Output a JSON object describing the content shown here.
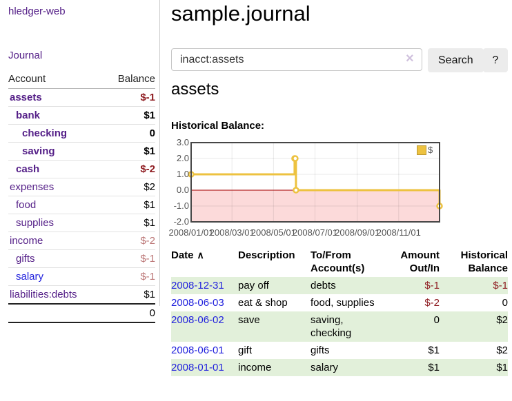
{
  "app": {
    "brand": "hledger-web"
  },
  "sidebar": {
    "nav_journal": "Journal",
    "table": {
      "headers": {
        "account": "Account",
        "balance": "Balance"
      },
      "rows": [
        {
          "account": "assets",
          "balance": "$-1",
          "indent": 1,
          "account_bold": true,
          "balance_style": "neg-strong"
        },
        {
          "account": "bank",
          "balance": "$1",
          "indent": 2,
          "account_bold": true,
          "balance_style": "bold"
        },
        {
          "account": "checking",
          "balance": "0",
          "indent": 3,
          "account_bold": true,
          "balance_style": "bold"
        },
        {
          "account": "saving",
          "balance": "$1",
          "indent": 3,
          "account_bold": true,
          "balance_style": "bold"
        },
        {
          "account": "cash",
          "balance": "$-2",
          "indent": 2,
          "account_bold": true,
          "balance_style": "neg-strong"
        },
        {
          "account": "expenses",
          "balance": "$2",
          "indent": 1,
          "account_bold": false,
          "balance_style": "plain"
        },
        {
          "account": "food",
          "balance": "$1",
          "indent": 2,
          "account_bold": false,
          "balance_style": "plain"
        },
        {
          "account": "supplies",
          "balance": "$1",
          "indent": 2,
          "account_bold": false,
          "balance_style": "plain"
        },
        {
          "account": "income",
          "balance": "$-2",
          "indent": 1,
          "account_bold": false,
          "balance_style": "neg-muted"
        },
        {
          "account": "gifts",
          "balance": "$-1",
          "indent": 2,
          "account_bold": false,
          "balance_style": "neg-muted"
        },
        {
          "account": "salary",
          "balance": "$-1",
          "indent": 2,
          "account_bold": false,
          "balance_style": "neg-muted",
          "link_color": "blue"
        },
        {
          "account": "liabilities:debts",
          "balance": "$1",
          "indent": 1,
          "account_bold": false,
          "balance_style": "plain"
        }
      ],
      "total": "0"
    }
  },
  "main": {
    "title": "sample.journal",
    "search": {
      "value": "inacct:assets",
      "clear_icon": "×",
      "button_label": "Search",
      "help_label": "?"
    },
    "account_heading": "assets",
    "chart_label": "Historical Balance:"
  },
  "chart_data": {
    "type": "line",
    "title": "Historical Balance",
    "steps": true,
    "series": [
      {
        "name": "$",
        "color": "#edc240",
        "points": [
          [
            "2008-01-01",
            1
          ],
          [
            "2008-06-01",
            2
          ],
          [
            "2008-06-02",
            2
          ],
          [
            "2008-06-03",
            0
          ],
          [
            "2008-12-31",
            -1
          ]
        ]
      }
    ],
    "x_range": [
      "2008-01-01",
      "2008-12-31"
    ],
    "ylim": [
      -2,
      3
    ],
    "y_tick_labels": [
      "3.0",
      "2.0",
      "1.0",
      "0.0",
      "-1.0",
      "-2.0"
    ],
    "y_tick_values": [
      3,
      2,
      1,
      0,
      -1,
      -2
    ],
    "x_ticks": [
      {
        "date": "2008-01-01",
        "label": "2008/01/01"
      },
      {
        "date": "2008-03-01",
        "label": "2008/03/01"
      },
      {
        "date": "2008-05-01",
        "label": "2008/05/01"
      },
      {
        "date": "2008-07-01",
        "label": "2008/07/01"
      },
      {
        "date": "2008-09-01",
        "label": "2008/09/01"
      },
      {
        "date": "2008-11-01",
        "label": "2008/11/01"
      }
    ],
    "legend_position": "top-right",
    "grid": true,
    "colors": {
      "negative_region": "#fcdada",
      "zero_line": "#a40000",
      "gridline": "rgba(0,0,0,0.09)",
      "plot_border": "#464646",
      "axis_text": "#545454"
    }
  },
  "register": {
    "headers": {
      "date": "Date",
      "sort_icon": "∧",
      "description": "Description",
      "accounts": "To/From Account(s)",
      "amount": "Amount Out/In",
      "balance": "Historical Balance"
    },
    "rows": [
      {
        "date": "2008-12-31",
        "description": "pay off",
        "accounts": "debts",
        "amount": "$-1",
        "amount_neg": true,
        "balance": "$-1",
        "balance_neg": true
      },
      {
        "date": "2008-06-03",
        "description": "eat & shop",
        "accounts": "food, supplies",
        "amount": "$-2",
        "amount_neg": true,
        "balance": "0",
        "balance_neg": false
      },
      {
        "date": "2008-06-02",
        "description": "save",
        "accounts": "saving, checking",
        "amount": "0",
        "amount_neg": false,
        "balance": "$2",
        "balance_neg": false
      },
      {
        "date": "2008-06-01",
        "description": "gift",
        "accounts": "gifts",
        "amount": "$1",
        "amount_neg": false,
        "balance": "$2",
        "balance_neg": false
      },
      {
        "date": "2008-01-01",
        "description": "income",
        "accounts": "salary",
        "amount": "$1",
        "amount_neg": false,
        "balance": "$1",
        "balance_neg": false
      }
    ]
  },
  "colors": {
    "link_purple": "#552088",
    "link_blue": "#2222dd",
    "negative_strong": "#8e1b20",
    "negative_muted": "#bb7575",
    "row_stripe_green": "#e2f0da",
    "button_bg": "#ececec"
  }
}
